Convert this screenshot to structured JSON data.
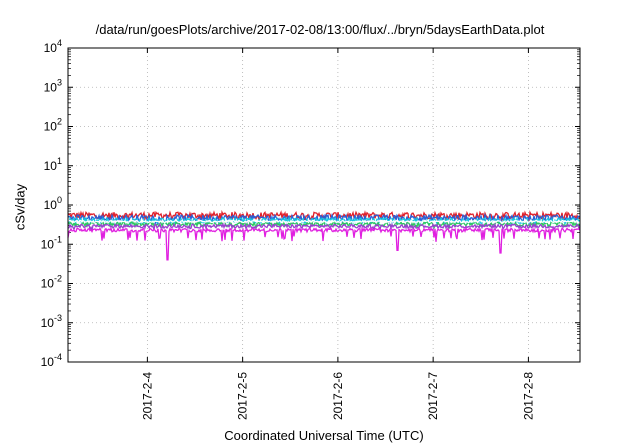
{
  "chart_data": {
    "type": "line",
    "title": "/data/run/goesPlots/archive/2017-02-08/13:00/flux/../bryn/5daysEarthData.plot",
    "xlabel": "Coordinated Universal Time (UTC)",
    "ylabel": "cSv/day",
    "y_scale": "log",
    "ylim": [
      0.0001,
      10000
    ],
    "y_ticks": [
      {
        "value": 0.0001,
        "label_base": "10",
        "label_exp": "-4"
      },
      {
        "value": 0.001,
        "label_base": "10",
        "label_exp": "-3"
      },
      {
        "value": 0.01,
        "label_base": "10",
        "label_exp": "-2"
      },
      {
        "value": 0.1,
        "label_base": "10",
        "label_exp": "-1"
      },
      {
        "value": 1,
        "label_base": "10",
        "label_exp": "0"
      },
      {
        "value": 10,
        "label_base": "10",
        "label_exp": "1"
      },
      {
        "value": 100,
        "label_base": "10",
        "label_exp": "2"
      },
      {
        "value": 1000,
        "label_base": "10",
        "label_exp": "3"
      },
      {
        "value": 10000,
        "label_base": "10",
        "label_exp": "4"
      }
    ],
    "xlim": [
      "2017-02-03T04:00",
      "2017-02-08T13:00"
    ],
    "x_ticks": [
      {
        "value": "2017-02-04T00:00",
        "label": "2017-2-4"
      },
      {
        "value": "2017-02-05T00:00",
        "label": "2017-2-5"
      },
      {
        "value": "2017-02-06T00:00",
        "label": "2017-2-6"
      },
      {
        "value": "2017-02-07T00:00",
        "label": "2017-2-7"
      },
      {
        "value": "2017-02-08T00:00",
        "label": "2017-2-8"
      }
    ],
    "grid": true,
    "series": [
      {
        "color": "#e0202a",
        "base": 0.55,
        "spread": 0.13,
        "spike_down": 0.8
      },
      {
        "color": "#2a5fd6",
        "base": 0.47,
        "spread": 0.11,
        "spike_down": 0.78
      },
      {
        "color": "#18c8e0",
        "base": 0.4,
        "spread": 0.08,
        "spike_down": 0.8
      },
      {
        "color": "#2cc860",
        "base": 0.33,
        "spread": 0.05,
        "spike_down": 0.85
      },
      {
        "color": "#ffffff",
        "base": 0.38,
        "spread": 0.03,
        "spike_down": 0.95
      },
      {
        "color": "#9a3fd0",
        "base": 0.29,
        "spread": 0.04,
        "spike_down": 0.85
      },
      {
        "color": "#e020e0",
        "base": 0.23,
        "spread": 0.03,
        "spike_down": 0.55
      }
    ],
    "notable_dips": [
      {
        "x": "2017-02-04T05:00",
        "y": 0.04
      },
      {
        "x": "2017-02-06T15:00",
        "y": 0.07
      },
      {
        "x": "2017-02-07T17:00",
        "y": 0.06
      }
    ]
  }
}
